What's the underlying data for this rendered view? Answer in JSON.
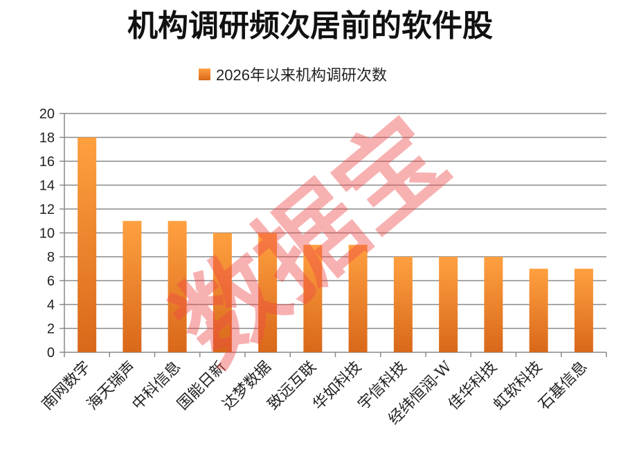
{
  "chart_data": {
    "type": "bar",
    "title": "机构调研频次居前的软件股",
    "categories": [
      "南网数字",
      "海天瑞声",
      "中科信息",
      "国能日新",
      "达梦数据",
      "致远互联",
      "华如科技",
      "宇信科技",
      "经纬恒润-W",
      "佳华科技",
      "虹软科技",
      "石基信息"
    ],
    "series": [
      {
        "name": "2026年以来机构调研次数",
        "values": [
          18,
          11,
          11,
          10,
          10,
          9,
          9,
          8,
          8,
          8,
          7,
          7
        ]
      }
    ],
    "ylim": [
      0,
      20
    ],
    "yticks": [
      0,
      2,
      4,
      6,
      8,
      10,
      12,
      14,
      16,
      18,
      20
    ],
    "grid": true,
    "legend_position": "top-center",
    "colors": {
      "bar_top": "#FFA040",
      "bar_bottom": "#D8681A",
      "legend": "#F08A2C",
      "grid": "#888888",
      "axis": "#888888"
    }
  },
  "watermark": {
    "text": "数据宝",
    "color": "#f04848"
  }
}
